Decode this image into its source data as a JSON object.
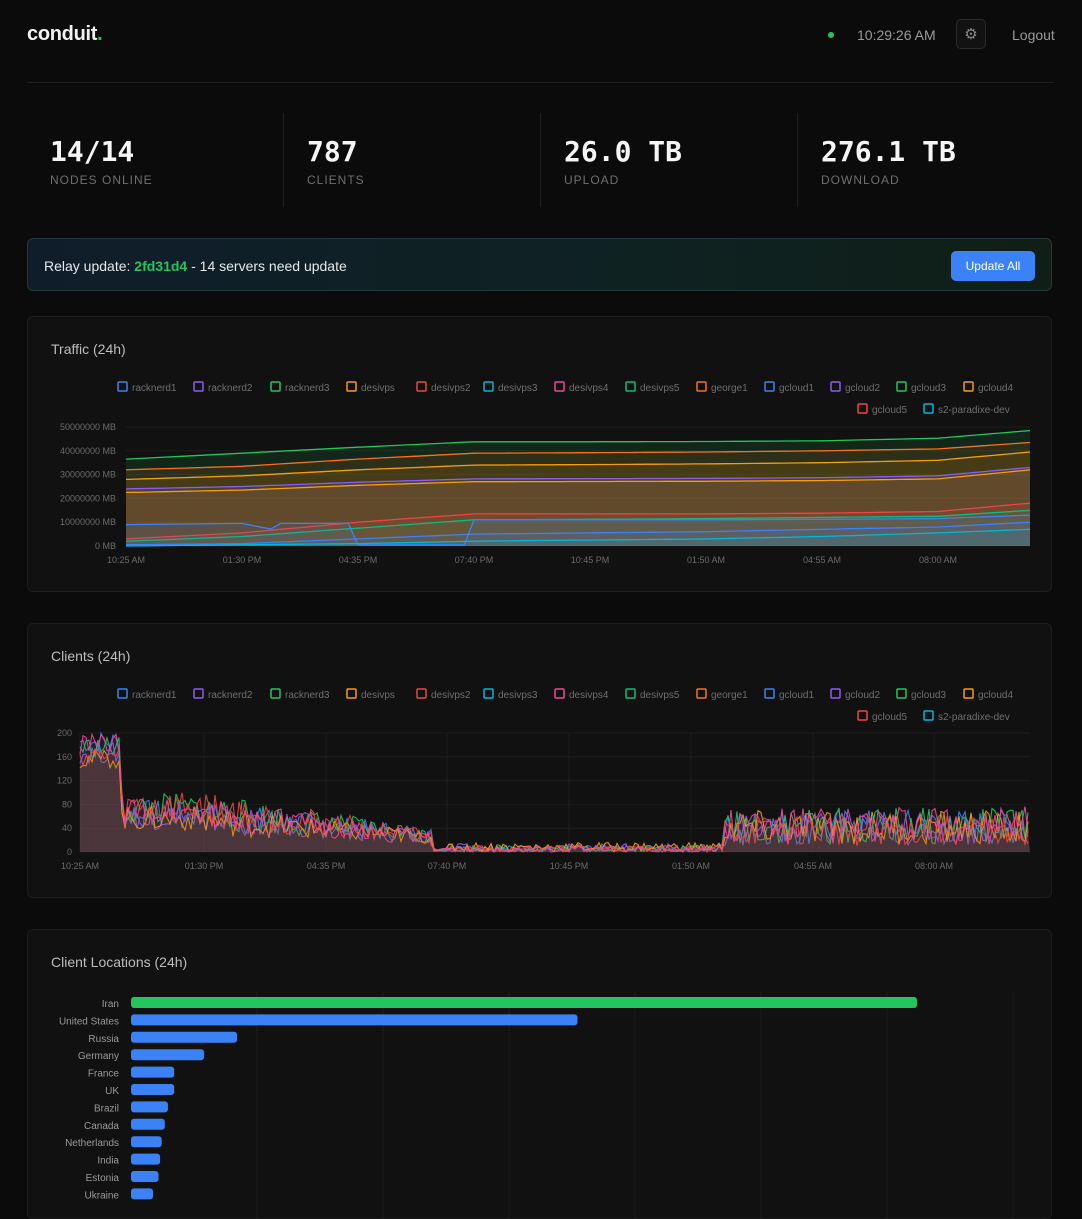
{
  "header": {
    "brand": "conduit",
    "brand_dot": ".",
    "time": "10:29:26 AM",
    "settings_icon": "⚙",
    "logout_label": "Logout"
  },
  "stats": [
    {
      "value": "14/14",
      "label": "NODES ONLINE"
    },
    {
      "value": "787",
      "label": "CLIENTS"
    },
    {
      "value": "26.0 TB",
      "label": "UPLOAD"
    },
    {
      "value": "276.1 TB",
      "label": "DOWNLOAD"
    }
  ],
  "banner": {
    "prefix": "Relay update: ",
    "hash": "2fd31d4",
    "suffix": " - 14 servers need update",
    "button_label": "Update All"
  },
  "colors": {
    "accent_green": "#22c55e",
    "accent_blue": "#3b82f6"
  },
  "legend": [
    {
      "name": "racknerd1",
      "color": "#3b82f6"
    },
    {
      "name": "racknerd2",
      "color": "#8b5cf6"
    },
    {
      "name": "racknerd3",
      "color": "#22c55e"
    },
    {
      "name": "desivps",
      "color": "#f59e0b"
    },
    {
      "name": "desivps2",
      "color": "#ef4444"
    },
    {
      "name": "desivps3",
      "color": "#06b6d4"
    },
    {
      "name": "desivps4",
      "color": "#ec4899"
    },
    {
      "name": "desivps5",
      "color": "#10b981"
    },
    {
      "name": "george1",
      "color": "#f97316"
    },
    {
      "name": "gcloud1",
      "color": "#3b82f6"
    },
    {
      "name": "gcloud2",
      "color": "#8b5cf6"
    },
    {
      "name": "gcloud3",
      "color": "#22c55e"
    },
    {
      "name": "gcloud4",
      "color": "#f59e0b"
    },
    {
      "name": "gcloud5",
      "color": "#ef4444"
    },
    {
      "name": "s2-paradixe-dev",
      "color": "#06b6d4"
    }
  ],
  "traffic": {
    "title": "Traffic (24h)",
    "x_labels": [
      "10:25 AM",
      "01:30 PM",
      "04:35 PM",
      "07:40 PM",
      "10:45 PM",
      "01:50 AM",
      "04:55 AM",
      "08:00 AM"
    ],
    "y_labels": [
      "50000000 MB",
      "40000000 MB",
      "30000000 MB",
      "20000000 MB",
      "10000000 MB",
      "0 MB"
    ]
  },
  "clients": {
    "title": "Clients (24h)",
    "x_labels": [
      "10:25 AM",
      "01:30 PM",
      "04:35 PM",
      "07:40 PM",
      "10:45 PM",
      "01:50 AM",
      "04:55 AM",
      "08:00 AM"
    ],
    "y_labels": [
      "200",
      "160",
      "120",
      "80",
      "40",
      "0"
    ]
  },
  "locations": {
    "title": "Client Locations (24h)"
  },
  "chart_data": [
    {
      "type": "area",
      "title": "Traffic (24h)",
      "xlabel": "",
      "ylabel": "MB",
      "ylim": [
        0,
        50000000
      ],
      "x": [
        "10:25 AM",
        "01:30 PM",
        "04:35 PM",
        "07:40 PM",
        "10:45 PM",
        "01:50 AM",
        "04:55 AM",
        "08:00 AM",
        "10:25 AM"
      ],
      "series": [
        {
          "name": "racknerd3",
          "values": [
            36500000,
            39000000,
            41500000,
            43800000,
            43800000,
            43900000,
            44200000,
            45300000,
            48500000
          ]
        },
        {
          "name": "george1",
          "values": [
            32000000,
            33500000,
            36500000,
            39000000,
            39200000,
            39500000,
            40000000,
            40800000,
            43500000
          ]
        },
        {
          "name": "desivps",
          "values": [
            28000000,
            29500000,
            32000000,
            34000000,
            34200000,
            34500000,
            35000000,
            36000000,
            39500000
          ]
        },
        {
          "name": "racknerd2",
          "values": [
            24000000,
            25000000,
            26800000,
            28200000,
            28300000,
            28400000,
            28700000,
            29500000,
            33000000
          ]
        },
        {
          "name": "gcloud4",
          "values": [
            22500000,
            23500000,
            25500000,
            27000000,
            27100000,
            27200000,
            27500000,
            28200000,
            32000000
          ]
        },
        {
          "name": "desivps2",
          "values": [
            3000000,
            5500000,
            10000000,
            13500000,
            13500000,
            13500000,
            13800000,
            14500000,
            18000000
          ]
        },
        {
          "name": "desivps5",
          "values": [
            2000000,
            4000000,
            7500000,
            11000000,
            11200000,
            11500000,
            12000000,
            12500000,
            15000000
          ]
        },
        {
          "name": "racknerd1",
          "values": [
            9000000,
            9500000,
            0,
            11000000,
            11000000,
            11000000,
            11200000,
            11500000,
            13000000
          ]
        },
        {
          "name": "gcloud1",
          "values": [
            500000,
            1000000,
            3000000,
            5000000,
            5500000,
            6000000,
            7000000,
            8000000,
            10000000
          ]
        },
        {
          "name": "desivps3",
          "values": [
            0,
            500000,
            1000000,
            2000000,
            2500000,
            3000000,
            4000000,
            5500000,
            7000000
          ]
        }
      ]
    },
    {
      "type": "line",
      "title": "Clients (24h)",
      "xlabel": "",
      "ylabel": "",
      "ylim": [
        0,
        200
      ],
      "x": [
        "10:25 AM",
        "01:30 PM",
        "04:35 PM",
        "07:40 PM",
        "10:45 PM",
        "01:50 AM",
        "04:55 AM",
        "08:00 AM",
        "10:25 AM"
      ],
      "series": [
        {
          "name": "racknerd1",
          "values": [
            195,
            80,
            38,
            2,
            8,
            15,
            60,
            55,
            70
          ]
        },
        {
          "name": "racknerd2",
          "values": [
            175,
            75,
            35,
            3,
            10,
            12,
            55,
            50,
            65
          ]
        },
        {
          "name": "racknerd3",
          "values": [
            185,
            90,
            36,
            1,
            9,
            18,
            62,
            60,
            72
          ]
        },
        {
          "name": "desivps",
          "values": [
            165,
            70,
            32,
            2,
            12,
            14,
            58,
            52,
            68
          ]
        },
        {
          "name": "desivps2",
          "values": [
            170,
            95,
            34,
            3,
            8,
            10,
            50,
            48,
            60
          ]
        },
        {
          "name": "desivps4",
          "values": [
            190,
            85,
            30,
            2,
            7,
            16,
            64,
            57,
            66
          ]
        }
      ]
    },
    {
      "type": "bar",
      "title": "Client Locations (24h)",
      "orientation": "horizontal",
      "categories": [
        "Iran",
        "United States",
        "Russia",
        "Germany",
        "France",
        "UK",
        "Brazil",
        "Canada",
        "Netherlands",
        "India",
        "Estonia",
        "Ukraine"
      ],
      "values": [
        1000,
        568,
        135,
        93,
        55,
        55,
        47,
        43,
        39,
        37,
        35,
        28
      ]
    }
  ]
}
